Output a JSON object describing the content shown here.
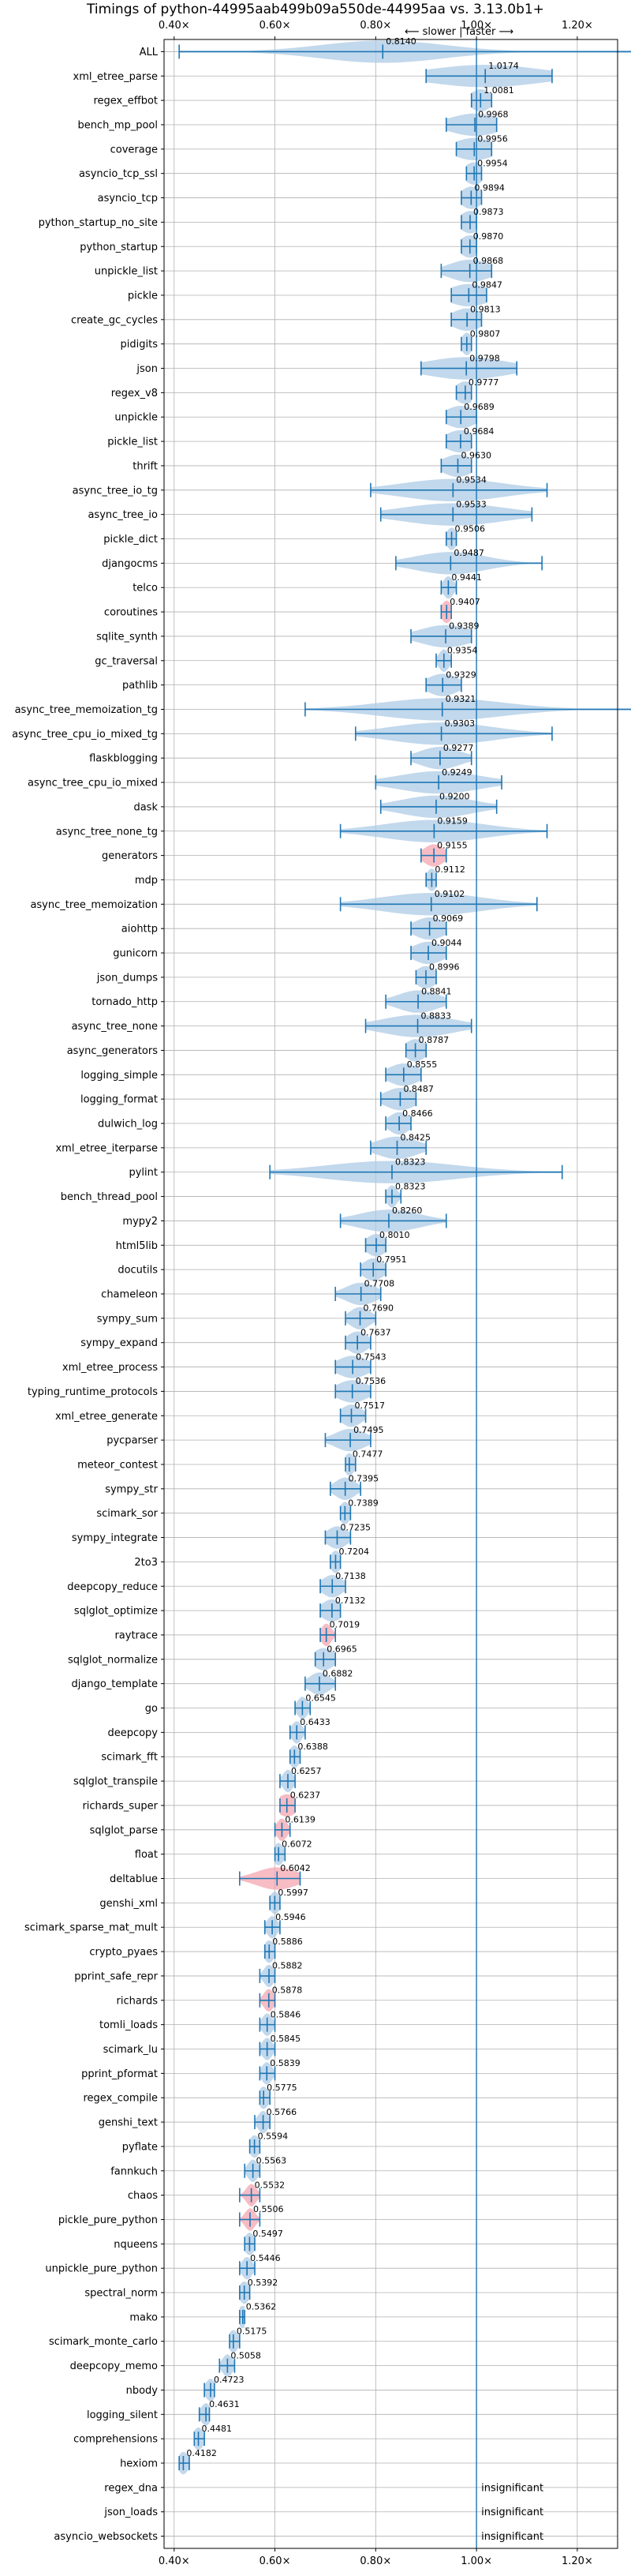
{
  "chart_data": {
    "type": "violin",
    "title": "Timings of python-44995aab499b09a550de-44995aa vs. 3.13.0b1+",
    "xlabel": "",
    "ylabel": "",
    "xlim": [
      0.38,
      1.28
    ],
    "x_ticks": [
      {
        "value": 0.4,
        "label": "0.40×"
      },
      {
        "value": 0.6,
        "label": "0.60×"
      },
      {
        "value": 0.8,
        "label": "0.80×"
      },
      {
        "value": 1.0,
        "label": "1.00×"
      },
      {
        "value": 1.2,
        "label": "1.20×"
      }
    ],
    "reference_line": 1.0,
    "direction_label": "⟵ slower | faster ⟶",
    "grid": true,
    "colors": {
      "violin": "#aecbe6",
      "errorbar": "#1f77b4",
      "highlight": "#f4a6b0",
      "grid": "#b0b0b0",
      "text": "#000000"
    },
    "benchmarks": [
      {
        "name": "ALL",
        "value": 0.814,
        "label": "0.8140",
        "low": 0.41,
        "high": 1.33,
        "spread": 0.12
      },
      {
        "name": "xml_etree_parse",
        "value": 1.0174,
        "label": "1.0174",
        "low": 0.9,
        "high": 1.15,
        "spread": 0.11
      },
      {
        "name": "regex_effbot",
        "value": 1.0081,
        "label": "1.0081",
        "low": 0.99,
        "high": 1.03,
        "spread": 0.02
      },
      {
        "name": "bench_mp_pool",
        "value": 0.9968,
        "label": "0.9968",
        "low": 0.94,
        "high": 1.04,
        "spread": 0.05
      },
      {
        "name": "coverage",
        "value": 0.9956,
        "label": "0.9956",
        "low": 0.96,
        "high": 1.03,
        "spread": 0.04
      },
      {
        "name": "asyncio_tcp_ssl",
        "value": 0.9954,
        "label": "0.9954",
        "low": 0.98,
        "high": 1.01,
        "spread": 0.02
      },
      {
        "name": "asyncio_tcp",
        "value": 0.9894,
        "label": "0.9894",
        "low": 0.97,
        "high": 1.01,
        "spread": 0.02
      },
      {
        "name": "python_startup_no_site",
        "value": 0.9873,
        "label": "0.9873",
        "low": 0.97,
        "high": 1.0,
        "spread": 0.02
      },
      {
        "name": "python_startup",
        "value": 0.987,
        "label": "0.9870",
        "low": 0.97,
        "high": 1.0,
        "spread": 0.02
      },
      {
        "name": "unpickle_list",
        "value": 0.9868,
        "label": "0.9868",
        "low": 0.93,
        "high": 1.03,
        "spread": 0.04
      },
      {
        "name": "pickle",
        "value": 0.9847,
        "label": "0.9847",
        "low": 0.95,
        "high": 1.02,
        "spread": 0.04
      },
      {
        "name": "create_gc_cycles",
        "value": 0.9813,
        "label": "0.9813",
        "low": 0.95,
        "high": 1.01,
        "spread": 0.03
      },
      {
        "name": "pidigits",
        "value": 0.9807,
        "label": "0.9807",
        "low": 0.97,
        "high": 0.99,
        "spread": 0.01
      },
      {
        "name": "json",
        "value": 0.9798,
        "label": "0.9798",
        "low": 0.89,
        "high": 1.08,
        "spread": 0.08
      },
      {
        "name": "regex_v8",
        "value": 0.9777,
        "label": "0.9777",
        "low": 0.96,
        "high": 0.99,
        "spread": 0.02
      },
      {
        "name": "unpickle",
        "value": 0.9689,
        "label": "0.9689",
        "low": 0.94,
        "high": 1.0,
        "spread": 0.03
      },
      {
        "name": "pickle_list",
        "value": 0.9684,
        "label": "0.9684",
        "low": 0.94,
        "high": 0.99,
        "spread": 0.03
      },
      {
        "name": "thrift",
        "value": 0.963,
        "label": "0.9630",
        "low": 0.93,
        "high": 0.99,
        "spread": 0.03
      },
      {
        "name": "async_tree_io_tg",
        "value": 0.9534,
        "label": "0.9534",
        "low": 0.79,
        "high": 1.14,
        "spread": 0.1
      },
      {
        "name": "async_tree_io",
        "value": 0.9533,
        "label": "0.9533",
        "low": 0.81,
        "high": 1.11,
        "spread": 0.1
      },
      {
        "name": "pickle_dict",
        "value": 0.9506,
        "label": "0.9506",
        "low": 0.94,
        "high": 0.96,
        "spread": 0.01
      },
      {
        "name": "djangocms",
        "value": 0.9487,
        "label": "0.9487",
        "low": 0.84,
        "high": 1.13,
        "spread": 0.07
      },
      {
        "name": "telco",
        "value": 0.9441,
        "label": "0.9441",
        "low": 0.93,
        "high": 0.96,
        "spread": 0.01
      },
      {
        "name": "coroutines",
        "value": 0.9407,
        "label": "0.9407",
        "low": 0.93,
        "high": 0.95,
        "spread": 0.01,
        "highlight": true
      },
      {
        "name": "sqlite_synth",
        "value": 0.9389,
        "label": "0.9389",
        "low": 0.87,
        "high": 0.99,
        "spread": 0.05
      },
      {
        "name": "gc_traversal",
        "value": 0.9354,
        "label": "0.9354",
        "low": 0.92,
        "high": 0.95,
        "spread": 0.01
      },
      {
        "name": "pathlib",
        "value": 0.9329,
        "label": "0.9329",
        "low": 0.9,
        "high": 0.97,
        "spread": 0.03
      },
      {
        "name": "async_tree_memoization_tg",
        "value": 0.9321,
        "label": "0.9321",
        "low": 0.66,
        "high": 1.33,
        "spread": 0.12
      },
      {
        "name": "async_tree_cpu_io_mixed_tg",
        "value": 0.9303,
        "label": "0.9303",
        "low": 0.76,
        "high": 1.15,
        "spread": 0.1
      },
      {
        "name": "flaskblogging",
        "value": 0.9277,
        "label": "0.9277",
        "low": 0.87,
        "high": 0.99,
        "spread": 0.04
      },
      {
        "name": "async_tree_cpu_io_mixed",
        "value": 0.9249,
        "label": "0.9249",
        "low": 0.8,
        "high": 1.05,
        "spread": 0.08
      },
      {
        "name": "dask",
        "value": 0.92,
        "label": "0.9200",
        "low": 0.81,
        "high": 1.04,
        "spread": 0.07
      },
      {
        "name": "async_tree_none_tg",
        "value": 0.9159,
        "label": "0.9159",
        "low": 0.73,
        "high": 1.14,
        "spread": 0.1
      },
      {
        "name": "generators",
        "value": 0.9155,
        "label": "0.9155",
        "low": 0.89,
        "high": 0.94,
        "spread": 0.02,
        "highlight": true
      },
      {
        "name": "mdp",
        "value": 0.9112,
        "label": "0.9112",
        "low": 0.9,
        "high": 0.92,
        "spread": 0.01
      },
      {
        "name": "async_tree_memoization",
        "value": 0.9102,
        "label": "0.9102",
        "low": 0.73,
        "high": 1.12,
        "spread": 0.1
      },
      {
        "name": "aiohttp",
        "value": 0.9069,
        "label": "0.9069",
        "low": 0.87,
        "high": 0.94,
        "spread": 0.03
      },
      {
        "name": "gunicorn",
        "value": 0.9044,
        "label": "0.9044",
        "low": 0.87,
        "high": 0.94,
        "spread": 0.03
      },
      {
        "name": "json_dumps",
        "value": 0.8996,
        "label": "0.8996",
        "low": 0.88,
        "high": 0.92,
        "spread": 0.02
      },
      {
        "name": "tornado_http",
        "value": 0.8841,
        "label": "0.8841",
        "low": 0.82,
        "high": 0.94,
        "spread": 0.04
      },
      {
        "name": "async_tree_none",
        "value": 0.8833,
        "label": "0.8833",
        "low": 0.78,
        "high": 0.99,
        "spread": 0.07
      },
      {
        "name": "async_generators",
        "value": 0.8787,
        "label": "0.8787",
        "low": 0.86,
        "high": 0.9,
        "spread": 0.02
      },
      {
        "name": "logging_simple",
        "value": 0.8555,
        "label": "0.8555",
        "low": 0.82,
        "high": 0.89,
        "spread": 0.03
      },
      {
        "name": "logging_format",
        "value": 0.8487,
        "label": "0.8487",
        "low": 0.81,
        "high": 0.88,
        "spread": 0.03
      },
      {
        "name": "dulwich_log",
        "value": 0.8466,
        "label": "0.8466",
        "low": 0.82,
        "high": 0.87,
        "spread": 0.02
      },
      {
        "name": "xml_etree_iterparse",
        "value": 0.8425,
        "label": "0.8425",
        "low": 0.79,
        "high": 0.9,
        "spread": 0.04
      },
      {
        "name": "pylint",
        "value": 0.8323,
        "label": "0.8323",
        "low": 0.59,
        "high": 1.17,
        "spread": 0.13
      },
      {
        "name": "bench_thread_pool",
        "value": 0.8323,
        "label": "0.8323",
        "low": 0.82,
        "high": 0.85,
        "spread": 0.01
      },
      {
        "name": "mypy2",
        "value": 0.826,
        "label": "0.8260",
        "low": 0.73,
        "high": 0.94,
        "spread": 0.06
      },
      {
        "name": "html5lib",
        "value": 0.801,
        "label": "0.8010",
        "low": 0.78,
        "high": 0.82,
        "spread": 0.02
      },
      {
        "name": "docutils",
        "value": 0.7951,
        "label": "0.7951",
        "low": 0.77,
        "high": 0.82,
        "spread": 0.02
      },
      {
        "name": "chameleon",
        "value": 0.7708,
        "label": "0.7708",
        "low": 0.72,
        "high": 0.81,
        "spread": 0.03
      },
      {
        "name": "sympy_sum",
        "value": 0.769,
        "label": "0.7690",
        "low": 0.74,
        "high": 0.8,
        "spread": 0.02
      },
      {
        "name": "sympy_expand",
        "value": 0.7637,
        "label": "0.7637",
        "low": 0.74,
        "high": 0.79,
        "spread": 0.02
      },
      {
        "name": "xml_etree_process",
        "value": 0.7543,
        "label": "0.7543",
        "low": 0.72,
        "high": 0.79,
        "spread": 0.03
      },
      {
        "name": "typing_runtime_protocols",
        "value": 0.7536,
        "label": "0.7536",
        "low": 0.72,
        "high": 0.79,
        "spread": 0.03
      },
      {
        "name": "xml_etree_generate",
        "value": 0.7517,
        "label": "0.7517",
        "low": 0.73,
        "high": 0.78,
        "spread": 0.02
      },
      {
        "name": "pycparser",
        "value": 0.7495,
        "label": "0.7495",
        "low": 0.7,
        "high": 0.79,
        "spread": 0.03
      },
      {
        "name": "meteor_contest",
        "value": 0.7477,
        "label": "0.7477",
        "low": 0.74,
        "high": 0.76,
        "spread": 0.01
      },
      {
        "name": "sympy_str",
        "value": 0.7395,
        "label": "0.7395",
        "low": 0.71,
        "high": 0.77,
        "spread": 0.02
      },
      {
        "name": "scimark_sor",
        "value": 0.7389,
        "label": "0.7389",
        "low": 0.73,
        "high": 0.75,
        "spread": 0.01
      },
      {
        "name": "sympy_integrate",
        "value": 0.7235,
        "label": "0.7235",
        "low": 0.7,
        "high": 0.75,
        "spread": 0.02
      },
      {
        "name": "2to3",
        "value": 0.7204,
        "label": "0.7204",
        "low": 0.71,
        "high": 0.73,
        "spread": 0.01
      },
      {
        "name": "deepcopy_reduce",
        "value": 0.7138,
        "label": "0.7138",
        "low": 0.69,
        "high": 0.74,
        "spread": 0.02
      },
      {
        "name": "sqlglot_optimize",
        "value": 0.7132,
        "label": "0.7132",
        "low": 0.69,
        "high": 0.73,
        "spread": 0.02
      },
      {
        "name": "raytrace",
        "value": 0.7019,
        "label": "0.7019",
        "low": 0.69,
        "high": 0.72,
        "spread": 0.01,
        "highlight": true
      },
      {
        "name": "sqlglot_normalize",
        "value": 0.6965,
        "label": "0.6965",
        "low": 0.68,
        "high": 0.72,
        "spread": 0.02
      },
      {
        "name": "django_template",
        "value": 0.6882,
        "label": "0.6882",
        "low": 0.66,
        "high": 0.72,
        "spread": 0.02
      },
      {
        "name": "go",
        "value": 0.6545,
        "label": "0.6545",
        "low": 0.64,
        "high": 0.67,
        "spread": 0.01
      },
      {
        "name": "deepcopy",
        "value": 0.6433,
        "label": "0.6433",
        "low": 0.63,
        "high": 0.66,
        "spread": 0.01
      },
      {
        "name": "scimark_fft",
        "value": 0.6388,
        "label": "0.6388",
        "low": 0.63,
        "high": 0.65,
        "spread": 0.01
      },
      {
        "name": "sqlglot_transpile",
        "value": 0.6257,
        "label": "0.6257",
        "low": 0.61,
        "high": 0.64,
        "spread": 0.01
      },
      {
        "name": "richards_super",
        "value": 0.6237,
        "label": "0.6237",
        "low": 0.61,
        "high": 0.64,
        "spread": 0.02,
        "highlight": true
      },
      {
        "name": "sqlglot_parse",
        "value": 0.6139,
        "label": "0.6139",
        "low": 0.6,
        "high": 0.63,
        "spread": 0.01,
        "highlight": true
      },
      {
        "name": "float",
        "value": 0.6072,
        "label": "0.6072",
        "low": 0.6,
        "high": 0.62,
        "spread": 0.01
      },
      {
        "name": "deltablue",
        "value": 0.6042,
        "label": "0.6042",
        "low": 0.53,
        "high": 0.65,
        "spread": 0.04,
        "highlight": true
      },
      {
        "name": "genshi_xml",
        "value": 0.5997,
        "label": "0.5997",
        "low": 0.59,
        "high": 0.61,
        "spread": 0.01
      },
      {
        "name": "scimark_sparse_mat_mult",
        "value": 0.5946,
        "label": "0.5946",
        "low": 0.58,
        "high": 0.61,
        "spread": 0.01
      },
      {
        "name": "crypto_pyaes",
        "value": 0.5886,
        "label": "0.5886",
        "low": 0.58,
        "high": 0.6,
        "spread": 0.01
      },
      {
        "name": "pprint_safe_repr",
        "value": 0.5882,
        "label": "0.5882",
        "low": 0.57,
        "high": 0.6,
        "spread": 0.01
      },
      {
        "name": "richards",
        "value": 0.5878,
        "label": "0.5878",
        "low": 0.57,
        "high": 0.6,
        "spread": 0.01,
        "highlight": true
      },
      {
        "name": "tomli_loads",
        "value": 0.5846,
        "label": "0.5846",
        "low": 0.57,
        "high": 0.6,
        "spread": 0.01
      },
      {
        "name": "scimark_lu",
        "value": 0.5845,
        "label": "0.5845",
        "low": 0.57,
        "high": 0.6,
        "spread": 0.01
      },
      {
        "name": "pprint_pformat",
        "value": 0.5839,
        "label": "0.5839",
        "low": 0.57,
        "high": 0.6,
        "spread": 0.01
      },
      {
        "name": "regex_compile",
        "value": 0.5775,
        "label": "0.5775",
        "low": 0.57,
        "high": 0.59,
        "spread": 0.01
      },
      {
        "name": "genshi_text",
        "value": 0.5766,
        "label": "0.5766",
        "low": 0.56,
        "high": 0.59,
        "spread": 0.01
      },
      {
        "name": "pyflate",
        "value": 0.5594,
        "label": "0.5594",
        "low": 0.55,
        "high": 0.57,
        "spread": 0.01
      },
      {
        "name": "fannkuch",
        "value": 0.5563,
        "label": "0.5563",
        "low": 0.54,
        "high": 0.57,
        "spread": 0.01
      },
      {
        "name": "chaos",
        "value": 0.5532,
        "label": "0.5532",
        "low": 0.53,
        "high": 0.57,
        "spread": 0.01,
        "highlight": true
      },
      {
        "name": "pickle_pure_python",
        "value": 0.5506,
        "label": "0.5506",
        "low": 0.53,
        "high": 0.57,
        "spread": 0.01,
        "highlight": true
      },
      {
        "name": "nqueens",
        "value": 0.5497,
        "label": "0.5497",
        "low": 0.54,
        "high": 0.56,
        "spread": 0.01
      },
      {
        "name": "unpickle_pure_python",
        "value": 0.5446,
        "label": "0.5446",
        "low": 0.53,
        "high": 0.56,
        "spread": 0.01
      },
      {
        "name": "spectral_norm",
        "value": 0.5392,
        "label": "0.5392",
        "low": 0.53,
        "high": 0.55,
        "spread": 0.01
      },
      {
        "name": "mako",
        "value": 0.5362,
        "label": "0.5362",
        "low": 0.53,
        "high": 0.54,
        "spread": 0.01
      },
      {
        "name": "scimark_monte_carlo",
        "value": 0.5175,
        "label": "0.5175",
        "low": 0.51,
        "high": 0.53,
        "spread": 0.01
      },
      {
        "name": "deepcopy_memo",
        "value": 0.5058,
        "label": "0.5058",
        "low": 0.49,
        "high": 0.52,
        "spread": 0.01
      },
      {
        "name": "nbody",
        "value": 0.4723,
        "label": "0.4723",
        "low": 0.46,
        "high": 0.48,
        "spread": 0.01
      },
      {
        "name": "logging_silent",
        "value": 0.4631,
        "label": "0.4631",
        "low": 0.45,
        "high": 0.47,
        "spread": 0.01
      },
      {
        "name": "comprehensions",
        "value": 0.4481,
        "label": "0.4481",
        "low": 0.44,
        "high": 0.46,
        "spread": 0.01
      },
      {
        "name": "hexiom",
        "value": 0.4182,
        "label": "0.4182",
        "low": 0.41,
        "high": 0.43,
        "spread": 0.01
      },
      {
        "name": "regex_dna",
        "insignificant": true,
        "label": "insignificant"
      },
      {
        "name": "json_loads",
        "insignificant": true,
        "label": "insignificant"
      },
      {
        "name": "asyncio_websockets",
        "insignificant": true,
        "label": "insignificant"
      }
    ]
  }
}
